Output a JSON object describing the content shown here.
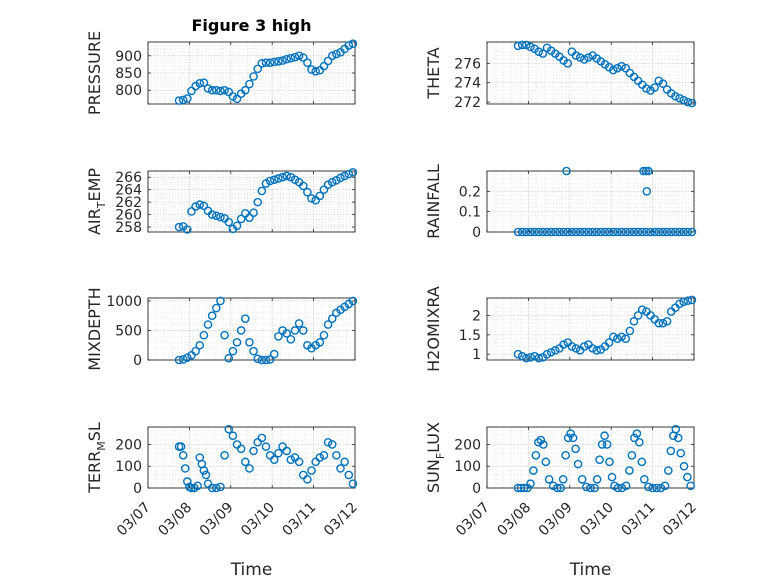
{
  "chart_data": [
    {
      "type": "scatter",
      "title": "Figure 3 high",
      "ylabel": "PRESSURE",
      "xlabel": "",
      "xlim": [
        0,
        5
      ],
      "ylim": [
        760,
        940
      ],
      "xticks": [
        0,
        1,
        2,
        3,
        4,
        5
      ],
      "xticklabels": [],
      "yticks": [
        800,
        850,
        900
      ],
      "yticklabels": [
        "800",
        "850",
        "900"
      ],
      "grid": true,
      "marker_color": "#0072BD",
      "x": [
        0.75,
        0.85,
        0.95,
        1.05,
        1.15,
        1.25,
        1.35,
        1.45,
        1.55,
        1.65,
        1.75,
        1.85,
        1.95,
        2.05,
        2.15,
        2.25,
        2.35,
        2.45,
        2.55,
        2.65,
        2.75,
        2.85,
        2.95,
        3.05,
        3.15,
        3.25,
        3.35,
        3.45,
        3.55,
        3.65,
        3.75,
        3.85,
        3.95,
        4.05,
        4.15,
        4.25,
        4.35,
        4.45,
        4.55,
        4.65,
        4.75,
        4.85,
        4.95
      ],
      "y": [
        770,
        772,
        776,
        798,
        812,
        820,
        822,
        805,
        800,
        800,
        798,
        800,
        795,
        782,
        775,
        790,
        800,
        818,
        840,
        862,
        878,
        880,
        880,
        882,
        884,
        886,
        890,
        893,
        896,
        900,
        895,
        880,
        860,
        855,
        858,
        870,
        885,
        900,
        905,
        910,
        920,
        930,
        935
      ]
    },
    {
      "type": "scatter",
      "title": "",
      "ylabel": "THETA",
      "xlabel": "",
      "xlim": [
        0,
        5
      ],
      "ylim": [
        271.8,
        278.2
      ],
      "xticks": [
        0,
        1,
        2,
        3,
        4,
        5
      ],
      "xticklabels": [],
      "yticks": [
        272,
        274,
        276
      ],
      "yticklabels": [
        "272",
        "274",
        "276"
      ],
      "grid": true,
      "marker_color": "#0072BD",
      "x": [
        0.75,
        0.85,
        0.95,
        1.05,
        1.15,
        1.25,
        1.35,
        1.45,
        1.55,
        1.65,
        1.75,
        1.85,
        1.95,
        2.05,
        2.15,
        2.25,
        2.35,
        2.45,
        2.55,
        2.65,
        2.75,
        2.85,
        2.95,
        3.05,
        3.15,
        3.25,
        3.35,
        3.45,
        3.55,
        3.65,
        3.75,
        3.85,
        3.95,
        4.05,
        4.15,
        4.25,
        4.35,
        4.45,
        4.55,
        4.65,
        4.75,
        4.85,
        4.95
      ],
      "y": [
        277.8,
        277.9,
        277.9,
        277.7,
        277.5,
        277.2,
        277.0,
        277.6,
        277.3,
        277.0,
        276.7,
        276.3,
        276.0,
        277.2,
        276.8,
        276.6,
        276.4,
        276.6,
        276.8,
        276.5,
        276.2,
        275.9,
        275.6,
        275.3,
        275.5,
        275.7,
        275.5,
        275.0,
        274.6,
        274.2,
        273.8,
        273.4,
        273.2,
        273.5,
        274.2,
        273.9,
        273.3,
        272.9,
        272.6,
        272.4,
        272.2,
        272.0,
        271.9
      ]
    },
    {
      "type": "scatter",
      "title": "",
      "ylabel": "AIR_TEMP",
      "ylabel_main": "AIR",
      "ylabel_sub": "T",
      "ylabel_rest": "EMP",
      "xlabel": "",
      "xlim": [
        0,
        5
      ],
      "ylim": [
        257.2,
        267
      ],
      "xticks": [
        0,
        1,
        2,
        3,
        4,
        5
      ],
      "xticklabels": [],
      "yticks": [
        258,
        260,
        262,
        264,
        266
      ],
      "yticklabels": [
        "258",
        "260",
        "262",
        "264",
        "266"
      ],
      "grid": true,
      "marker_color": "#0072BD",
      "x": [
        0.75,
        0.85,
        0.95,
        1.05,
        1.15,
        1.25,
        1.35,
        1.45,
        1.55,
        1.65,
        1.75,
        1.85,
        1.95,
        2.05,
        2.15,
        2.25,
        2.35,
        2.45,
        2.55,
        2.65,
        2.75,
        2.85,
        2.95,
        3.05,
        3.15,
        3.25,
        3.35,
        3.45,
        3.55,
        3.65,
        3.75,
        3.85,
        3.95,
        4.05,
        4.15,
        4.25,
        4.35,
        4.45,
        4.55,
        4.65,
        4.75,
        4.85,
        4.95
      ],
      "y": [
        258.0,
        258.1,
        257.6,
        260.5,
        261.3,
        261.6,
        261.4,
        260.6,
        260.0,
        259.8,
        259.6,
        259.4,
        258.8,
        257.7,
        258.2,
        259.3,
        260.2,
        259.5,
        260.3,
        262.0,
        263.8,
        265.0,
        265.4,
        265.6,
        265.8,
        266.0,
        266.2,
        266.0,
        265.6,
        265.2,
        264.6,
        263.6,
        262.6,
        262.3,
        263.0,
        264.0,
        264.8,
        265.2,
        265.5,
        265.9,
        266.2,
        266.5,
        266.8
      ]
    },
    {
      "type": "scatter",
      "title": "",
      "ylabel": "RAINFALL",
      "xlabel": "",
      "xlim": [
        0,
        5
      ],
      "ylim": [
        0,
        0.3
      ],
      "xticks": [
        0,
        1,
        2,
        3,
        4,
        5
      ],
      "xticklabels": [],
      "yticks": [
        0,
        0.1,
        0.2
      ],
      "yticklabels": [
        "0",
        "0.1",
        "0.2"
      ],
      "grid": true,
      "marker_color": "#0072BD",
      "x": [
        0.75,
        0.85,
        0.95,
        1.05,
        1.15,
        1.25,
        1.35,
        1.45,
        1.55,
        1.65,
        1.75,
        1.85,
        1.95,
        2.05,
        2.15,
        2.25,
        2.35,
        2.45,
        2.55,
        2.65,
        2.75,
        2.85,
        2.95,
        3.05,
        3.15,
        3.25,
        3.35,
        3.45,
        3.55,
        3.65,
        3.75,
        3.85,
        3.95,
        4.05,
        4.15,
        4.25,
        4.35,
        4.45,
        4.55,
        4.65,
        4.75,
        4.85,
        4.95,
        1.92,
        3.78,
        3.84,
        3.9,
        3.86
      ],
      "y": [
        0,
        0,
        0,
        0,
        0,
        0,
        0,
        0,
        0,
        0,
        0,
        0,
        0,
        0,
        0,
        0,
        0,
        0,
        0,
        0,
        0,
        0,
        0,
        0,
        0,
        0,
        0,
        0,
        0,
        0,
        0,
        0,
        0,
        0,
        0,
        0,
        0,
        0,
        0,
        0,
        0,
        0,
        0,
        0.3,
        0.3,
        0.3,
        0.3,
        0.2
      ]
    },
    {
      "type": "scatter",
      "title": "",
      "ylabel": "MIXDEPTH",
      "xlabel": "",
      "xlim": [
        0,
        5
      ],
      "ylim": [
        0,
        1050
      ],
      "xticks": [
        0,
        1,
        2,
        3,
        4,
        5
      ],
      "xticklabels": [],
      "yticks": [
        0,
        500,
        1000
      ],
      "yticklabels": [
        "0",
        "500",
        "1000"
      ],
      "grid": true,
      "marker_color": "#0072BD",
      "x": [
        0.75,
        0.85,
        0.95,
        1.05,
        1.15,
        1.25,
        1.35,
        1.45,
        1.55,
        1.65,
        1.75,
        1.85,
        1.95,
        2.05,
        2.15,
        2.25,
        2.35,
        2.45,
        2.55,
        2.65,
        2.75,
        2.85,
        2.95,
        3.05,
        3.15,
        3.25,
        3.35,
        3.45,
        3.55,
        3.65,
        3.75,
        3.85,
        3.95,
        4.05,
        4.15,
        4.25,
        4.35,
        4.45,
        4.55,
        4.65,
        4.75,
        4.85,
        4.95
      ],
      "y": [
        0,
        10,
        40,
        80,
        150,
        250,
        420,
        600,
        750,
        880,
        1000,
        420,
        30,
        150,
        300,
        500,
        700,
        300,
        150,
        20,
        0,
        0,
        10,
        100,
        400,
        500,
        450,
        350,
        500,
        620,
        500,
        250,
        200,
        250,
        300,
        420,
        600,
        700,
        800,
        850,
        900,
        950,
        1000
      ]
    },
    {
      "type": "scatter",
      "title": "",
      "ylabel": "H2OMIXRA",
      "xlabel": "",
      "xlim": [
        0,
        5
      ],
      "ylim": [
        0.85,
        2.45
      ],
      "xticks": [
        0,
        1,
        2,
        3,
        4,
        5
      ],
      "xticklabels": [],
      "yticks": [
        1,
        1.5,
        2
      ],
      "yticklabels": [
        "1",
        "1.5",
        "2"
      ],
      "grid": true,
      "marker_color": "#0072BD",
      "x": [
        0.75,
        0.85,
        0.95,
        1.05,
        1.15,
        1.25,
        1.35,
        1.45,
        1.55,
        1.65,
        1.75,
        1.85,
        1.95,
        2.05,
        2.15,
        2.25,
        2.35,
        2.45,
        2.55,
        2.65,
        2.75,
        2.85,
        2.95,
        3.05,
        3.15,
        3.25,
        3.35,
        3.45,
        3.55,
        3.65,
        3.75,
        3.85,
        3.95,
        4.05,
        4.15,
        4.25,
        4.35,
        4.45,
        4.55,
        4.65,
        4.75,
        4.85,
        4.95
      ],
      "y": [
        1.0,
        0.95,
        0.9,
        0.92,
        0.95,
        0.9,
        0.92,
        1.0,
        1.05,
        1.1,
        1.15,
        1.25,
        1.3,
        1.2,
        1.15,
        1.1,
        1.2,
        1.25,
        1.15,
        1.1,
        1.12,
        1.2,
        1.3,
        1.45,
        1.4,
        1.45,
        1.4,
        1.6,
        1.85,
        2.0,
        2.15,
        2.1,
        2.0,
        1.9,
        1.8,
        1.8,
        1.85,
        2.1,
        2.2,
        2.3,
        2.35,
        2.38,
        2.4
      ]
    },
    {
      "type": "scatter",
      "title": "",
      "ylabel": "TERR_MSL",
      "ylabel_main": "TERR",
      "ylabel_sub": "M",
      "ylabel_rest": "SL",
      "xlabel": "Time",
      "xlim": [
        0,
        5
      ],
      "ylim": [
        0,
        280
      ],
      "xticks": [
        0,
        1,
        2,
        3,
        4,
        5
      ],
      "xticklabels": [
        "03/07",
        "03/08",
        "03/09",
        "03/10",
        "03/11",
        "03/12"
      ],
      "yticks": [
        0,
        100,
        200
      ],
      "yticklabels": [
        "0",
        "100",
        "200"
      ],
      "grid": true,
      "marker_color": "#0072BD",
      "x": [
        0.75,
        0.8,
        0.85,
        0.9,
        0.95,
        1.0,
        1.05,
        1.12,
        1.2,
        1.25,
        1.3,
        1.35,
        1.4,
        1.45,
        1.55,
        1.65,
        1.75,
        1.85,
        1.95,
        2.05,
        2.15,
        2.25,
        2.35,
        2.45,
        2.55,
        2.65,
        2.75,
        2.85,
        2.95,
        3.05,
        3.15,
        3.25,
        3.35,
        3.45,
        3.55,
        3.65,
        3.75,
        3.85,
        3.95,
        4.05,
        4.15,
        4.25,
        4.35,
        4.45,
        4.55,
        4.65,
        4.75,
        4.85,
        4.95
      ],
      "y": [
        190,
        190,
        150,
        90,
        30,
        5,
        0,
        0,
        10,
        140,
        110,
        80,
        60,
        20,
        0,
        0,
        5,
        150,
        270,
        240,
        200,
        180,
        120,
        90,
        170,
        210,
        230,
        190,
        150,
        130,
        160,
        190,
        170,
        130,
        140,
        120,
        60,
        40,
        80,
        120,
        140,
        150,
        210,
        200,
        150,
        90,
        120,
        60,
        20
      ]
    },
    {
      "type": "scatter",
      "title": "",
      "ylabel": "SUN_FLUX",
      "ylabel_main": "SUN",
      "ylabel_sub": "F",
      "ylabel_rest": "LUX",
      "xlabel": "Time",
      "xlim": [
        0,
        5
      ],
      "ylim": [
        0,
        280
      ],
      "xticks": [
        0,
        1,
        2,
        3,
        4,
        5
      ],
      "xticklabels": [
        "03/07",
        "03/08",
        "03/09",
        "03/10",
        "03/11",
        "03/12"
      ],
      "yticks": [
        0,
        100,
        200
      ],
      "yticklabels": [
        "0",
        "100",
        "200"
      ],
      "grid": true,
      "marker_color": "#0072BD",
      "x": [
        0.75,
        0.82,
        0.9,
        0.98,
        1.05,
        1.12,
        1.18,
        1.24,
        1.3,
        1.36,
        1.42,
        1.5,
        1.6,
        1.7,
        1.78,
        1.84,
        1.9,
        1.96,
        2.02,
        2.08,
        2.14,
        2.2,
        2.3,
        2.4,
        2.5,
        2.6,
        2.66,
        2.72,
        2.78,
        2.84,
        2.9,
        2.96,
        3.02,
        3.08,
        3.16,
        3.26,
        3.36,
        3.44,
        3.5,
        3.56,
        3.62,
        3.68,
        3.74,
        3.8,
        3.9,
        4.0,
        4.1,
        4.2,
        4.3,
        4.38,
        4.44,
        4.5,
        4.56,
        4.62,
        4.68,
        4.76,
        4.84,
        4.92
      ],
      "y": [
        0,
        0,
        0,
        0,
        20,
        80,
        150,
        210,
        220,
        200,
        120,
        40,
        10,
        0,
        0,
        40,
        150,
        230,
        250,
        230,
        180,
        110,
        40,
        5,
        0,
        0,
        40,
        130,
        200,
        240,
        200,
        120,
        50,
        10,
        0,
        0,
        10,
        80,
        150,
        230,
        250,
        210,
        120,
        40,
        5,
        0,
        0,
        0,
        10,
        80,
        170,
        240,
        270,
        230,
        160,
        100,
        50,
        10
      ]
    }
  ]
}
